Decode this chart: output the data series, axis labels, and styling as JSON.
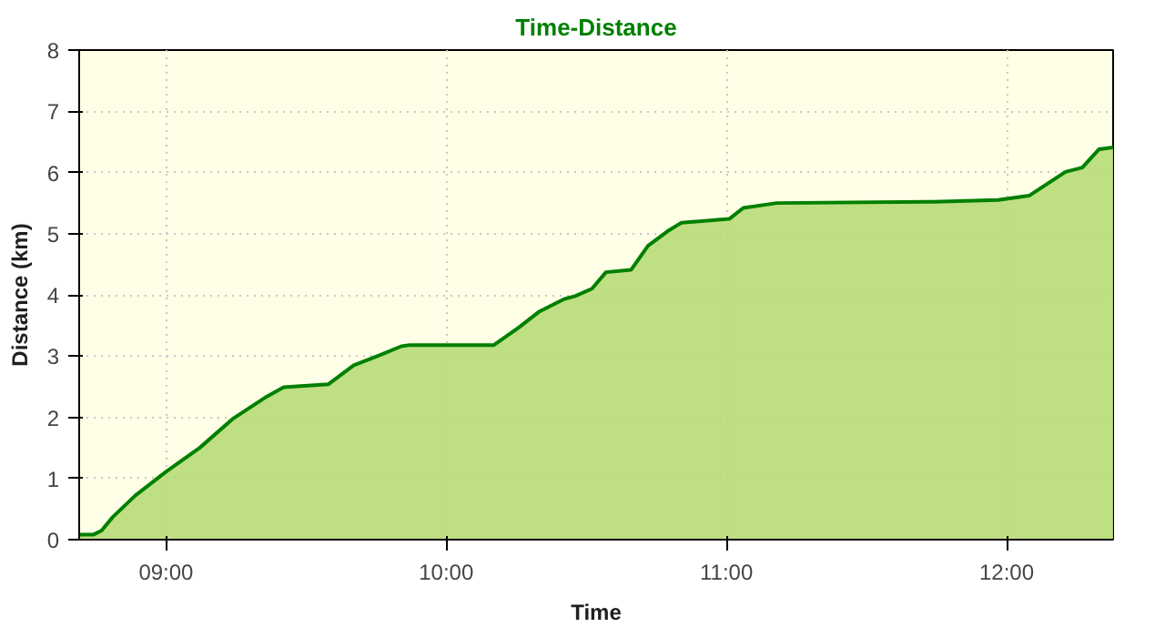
{
  "chart_data": {
    "type": "area",
    "title": "Time-Distance",
    "xlabel": "Time",
    "ylabel": "Distance (km)",
    "x": [
      8.69,
      8.74,
      8.77,
      8.81,
      8.89,
      9.0,
      9.12,
      9.24,
      9.36,
      9.42,
      9.58,
      9.67,
      9.76,
      9.84,
      9.87,
      10.17,
      10.26,
      10.33,
      10.42,
      10.46,
      10.52,
      10.57,
      10.66,
      10.72,
      10.79,
      10.84,
      11.01,
      11.06,
      11.18,
      11.74,
      11.97,
      12.08,
      12.21,
      12.27,
      12.33,
      12.38
    ],
    "series": [
      {
        "color": "#008000",
        "values": [
          0.08,
          0.08,
          0.15,
          0.37,
          0.72,
          1.11,
          1.5,
          1.98,
          2.34,
          2.49,
          2.54,
          2.85,
          3.01,
          3.16,
          3.18,
          3.18,
          3.47,
          3.72,
          3.93,
          3.98,
          4.1,
          4.37,
          4.41,
          4.8,
          5.04,
          5.18,
          5.24,
          5.42,
          5.5,
          5.52,
          5.55,
          5.62,
          6.01,
          6.08,
          6.38,
          6.41
        ]
      }
    ],
    "xlim": [
      8.69,
      12.38
    ],
    "ylim": [
      0,
      8
    ],
    "xticks": [
      {
        "value": 9,
        "label": "09:00"
      },
      {
        "value": 10,
        "label": "10:00"
      },
      {
        "value": 11,
        "label": "11:00"
      },
      {
        "value": 12,
        "label": "12:00"
      }
    ],
    "yticks": [
      0,
      1,
      2,
      3,
      4,
      5,
      6,
      7,
      8
    ],
    "grid": true
  }
}
